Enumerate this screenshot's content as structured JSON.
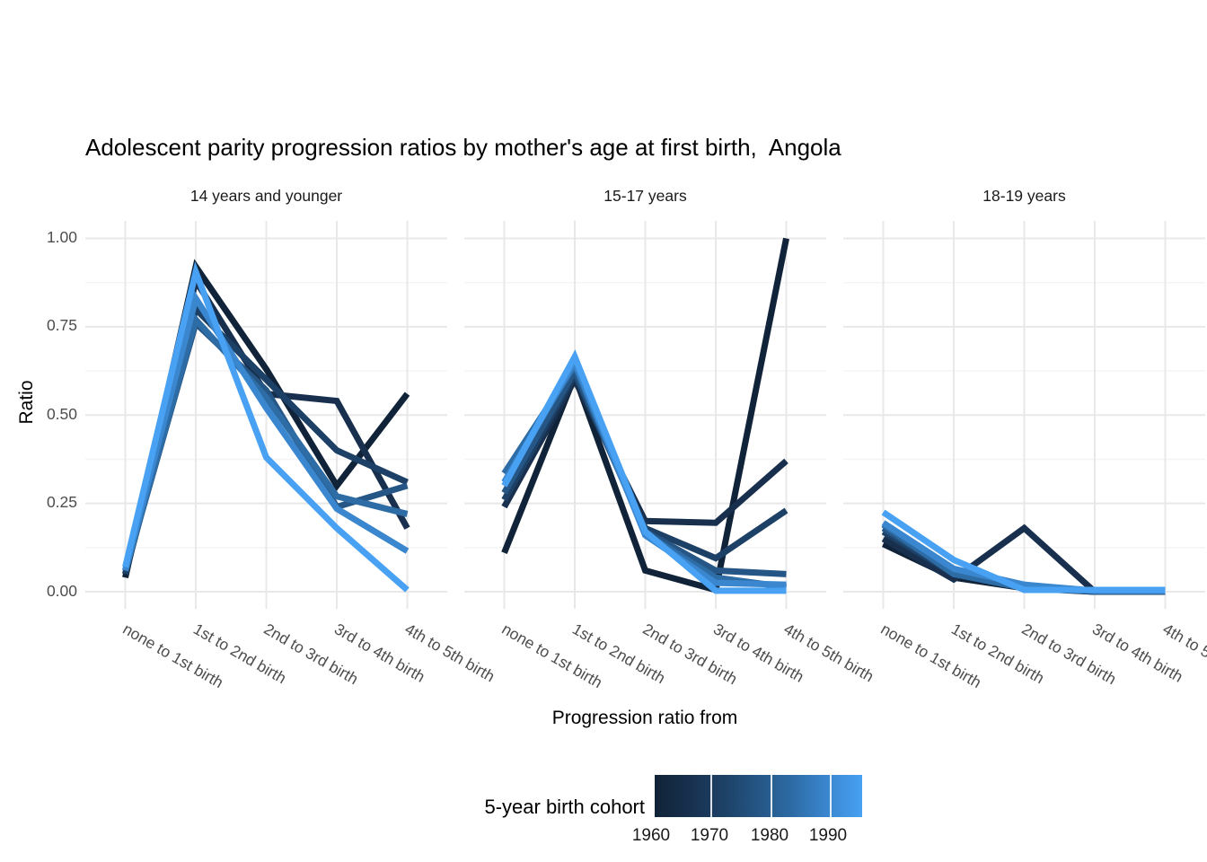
{
  "title": "Adolescent parity progression ratios by mother's age at first birth,  Angola",
  "y_axis": {
    "title": "Ratio",
    "tick_labels": [
      "1.00",
      "0.75",
      "0.50",
      "0.25",
      "0.00"
    ]
  },
  "x_axis": {
    "title": "Progression ratio from"
  },
  "legend": {
    "title": "5-year birth cohort",
    "tick_labels": [
      "1960",
      "1970",
      "1980",
      "1990"
    ],
    "gradient": [
      "#102338",
      "#18304e",
      "#1d4166",
      "#255685",
      "#2e6ca6",
      "#3a87d0",
      "#48a1f2"
    ]
  },
  "chart_data": {
    "type": "line",
    "title": "Adolescent parity progression ratios by mother's age at first birth, Angola",
    "xlabel": "Progression ratio from",
    "ylabel": "Ratio",
    "ylim": [
      0,
      1
    ],
    "y_major": [
      0,
      0.25,
      0.5,
      0.75,
      1.0
    ],
    "y_minor": [
      0.125,
      0.375,
      0.625,
      0.875
    ],
    "grid": true,
    "legend_position": "bottom",
    "legend_type": "continuous-colorbar",
    "legend_title": "5-year birth cohort",
    "legend_ticks": [
      1960,
      1970,
      1980,
      1990
    ],
    "categories": [
      "none to 1st birth",
      "1st to 2nd birth",
      "2nd to 3rd birth",
      "3rd to 4th birth",
      "4th to 5th birth"
    ],
    "facets": [
      {
        "label": "14 years and younger",
        "series": [
          {
            "name": "1960",
            "color": "#102338",
            "values": [
              0.04,
              0.92,
              0.63,
              0.3,
              0.56
            ]
          },
          {
            "name": "1965",
            "color": "#18304e",
            "values": [
              0.05,
              0.88,
              0.56,
              0.54,
              0.18
            ]
          },
          {
            "name": "1970",
            "color": "#1d4166",
            "values": [
              0.05,
              0.8,
              0.6,
              0.4,
              0.31
            ]
          },
          {
            "name": "1975",
            "color": "#255685",
            "values": [
              0.06,
              0.76,
              0.57,
              0.24,
              0.3
            ]
          },
          {
            "name": "1980",
            "color": "#2e6ca6",
            "values": [
              0.06,
              0.77,
              0.55,
              0.27,
              0.22
            ]
          },
          {
            "name": "1985",
            "color": "#3a87d0",
            "values": [
              0.06,
              0.83,
              0.52,
              0.235,
              0.115
            ]
          },
          {
            "name": "1990",
            "color": "#48a1f2",
            "values": [
              0.07,
              0.905,
              0.38,
              0.18,
              0.005
            ]
          }
        ]
      },
      {
        "label": "15-17 years",
        "series": [
          {
            "name": "1960",
            "color": "#102338",
            "values": [
              0.11,
              0.61,
              0.06,
              0.005,
              1.0
            ]
          },
          {
            "name": "1965",
            "color": "#18304e",
            "values": [
              0.24,
              0.6,
              0.2,
              0.195,
              0.37
            ]
          },
          {
            "name": "1970",
            "color": "#1d4166",
            "values": [
              0.26,
              0.615,
              0.18,
              0.095,
              0.23
            ]
          },
          {
            "name": "1975",
            "color": "#255685",
            "values": [
              0.28,
              0.625,
              0.17,
              0.06,
              0.05
            ]
          },
          {
            "name": "1980",
            "color": "#2e6ca6",
            "values": [
              0.335,
              0.64,
              0.165,
              0.04,
              0.013
            ]
          },
          {
            "name": "1985",
            "color": "#3a87d0",
            "values": [
              0.31,
              0.65,
              0.16,
              0.025,
              0.02
            ]
          },
          {
            "name": "1990",
            "color": "#48a1f2",
            "values": [
              0.3,
              0.665,
              0.17,
              0.003,
              0.003
            ]
          }
        ]
      },
      {
        "label": "18-19 years",
        "series": [
          {
            "name": "1960",
            "color": "#102338",
            "values": [
              0.135,
              0.04,
              0.01,
              0.0,
              0.0
            ]
          },
          {
            "name": "1965",
            "color": "#18304e",
            "values": [
              0.15,
              0.035,
              0.18,
              0.0,
              0.0
            ]
          },
          {
            "name": "1970",
            "color": "#1d4166",
            "values": [
              0.17,
              0.05,
              0.012,
              0.0,
              0.0
            ]
          },
          {
            "name": "1975",
            "color": "#255685",
            "values": [
              0.18,
              0.055,
              0.015,
              0.002,
              0.002
            ]
          },
          {
            "name": "1980",
            "color": "#2e6ca6",
            "values": [
              0.19,
              0.05,
              0.01,
              0.002,
              0.002
            ]
          },
          {
            "name": "1985",
            "color": "#3a87d0",
            "values": [
              0.195,
              0.065,
              0.02,
              0.003,
              0.003
            ]
          },
          {
            "name": "1990",
            "color": "#48a1f2",
            "values": [
              0.225,
              0.09,
              0.005,
              0.005,
              0.005
            ]
          }
        ]
      }
    ]
  }
}
